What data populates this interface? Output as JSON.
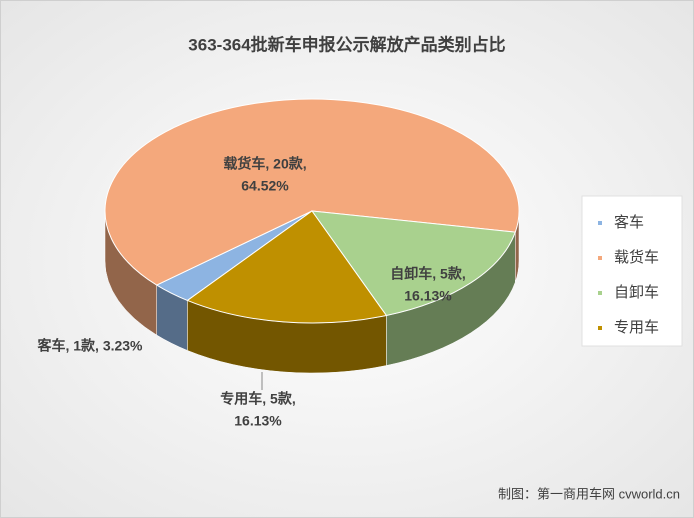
{
  "chart_data": {
    "type": "pie",
    "title": "363-364批新车申报公示解放产品类别占比",
    "categories": [
      "客车",
      "载货车",
      "自卸车",
      "专用车"
    ],
    "values": [
      1,
      20,
      5,
      5
    ],
    "colors": [
      "#8db4e2",
      "#f4a87c",
      "#a9d18e",
      "#bf9000"
    ],
    "value_labels": [
      [
        "客车, 1款, 3.23%"
      ],
      [
        "载货车, 20款,",
        "64.52%"
      ],
      [
        "自卸车, 5款,",
        "16.13%"
      ],
      [
        "专用车, 5款,",
        "16.13%"
      ]
    ],
    "legend": "right"
  },
  "source": "制图：第一商用车网 cvworld.cn"
}
